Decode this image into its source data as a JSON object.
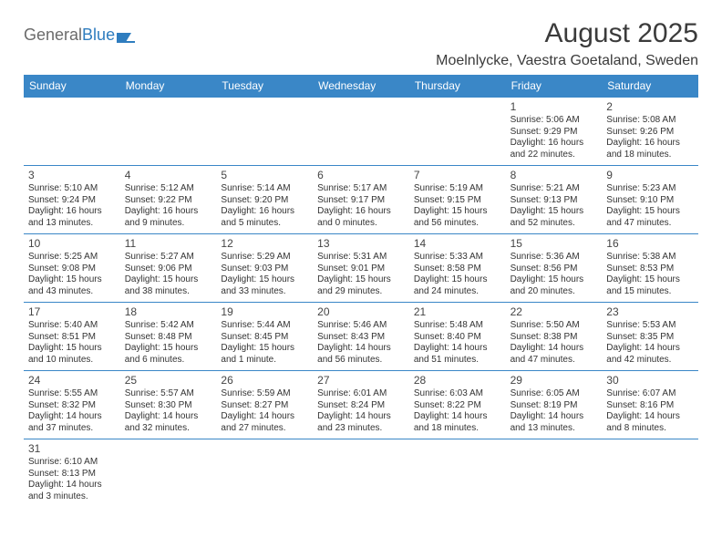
{
  "logo": {
    "text1": "General",
    "text2": "Blue"
  },
  "title": "August 2025",
  "location": "Moelnlycke, Vaestra Goetaland, Sweden",
  "colors": {
    "header_bg": "#3a87c7",
    "header_fg": "#ffffff",
    "rule": "#3a87c7",
    "logo_gray": "#6b6b6b",
    "logo_blue": "#2f7dbf",
    "text": "#333333"
  },
  "day_labels": [
    "Sunday",
    "Monday",
    "Tuesday",
    "Wednesday",
    "Thursday",
    "Friday",
    "Saturday"
  ],
  "weeks": [
    [
      null,
      null,
      null,
      null,
      null,
      {
        "n": "1",
        "sr": "Sunrise: 5:06 AM",
        "ss": "Sunset: 9:29 PM",
        "dl": "Daylight: 16 hours and 22 minutes."
      },
      {
        "n": "2",
        "sr": "Sunrise: 5:08 AM",
        "ss": "Sunset: 9:26 PM",
        "dl": "Daylight: 16 hours and 18 minutes."
      }
    ],
    [
      {
        "n": "3",
        "sr": "Sunrise: 5:10 AM",
        "ss": "Sunset: 9:24 PM",
        "dl": "Daylight: 16 hours and 13 minutes."
      },
      {
        "n": "4",
        "sr": "Sunrise: 5:12 AM",
        "ss": "Sunset: 9:22 PM",
        "dl": "Daylight: 16 hours and 9 minutes."
      },
      {
        "n": "5",
        "sr": "Sunrise: 5:14 AM",
        "ss": "Sunset: 9:20 PM",
        "dl": "Daylight: 16 hours and 5 minutes."
      },
      {
        "n": "6",
        "sr": "Sunrise: 5:17 AM",
        "ss": "Sunset: 9:17 PM",
        "dl": "Daylight: 16 hours and 0 minutes."
      },
      {
        "n": "7",
        "sr": "Sunrise: 5:19 AM",
        "ss": "Sunset: 9:15 PM",
        "dl": "Daylight: 15 hours and 56 minutes."
      },
      {
        "n": "8",
        "sr": "Sunrise: 5:21 AM",
        "ss": "Sunset: 9:13 PM",
        "dl": "Daylight: 15 hours and 52 minutes."
      },
      {
        "n": "9",
        "sr": "Sunrise: 5:23 AM",
        "ss": "Sunset: 9:10 PM",
        "dl": "Daylight: 15 hours and 47 minutes."
      }
    ],
    [
      {
        "n": "10",
        "sr": "Sunrise: 5:25 AM",
        "ss": "Sunset: 9:08 PM",
        "dl": "Daylight: 15 hours and 43 minutes."
      },
      {
        "n": "11",
        "sr": "Sunrise: 5:27 AM",
        "ss": "Sunset: 9:06 PM",
        "dl": "Daylight: 15 hours and 38 minutes."
      },
      {
        "n": "12",
        "sr": "Sunrise: 5:29 AM",
        "ss": "Sunset: 9:03 PM",
        "dl": "Daylight: 15 hours and 33 minutes."
      },
      {
        "n": "13",
        "sr": "Sunrise: 5:31 AM",
        "ss": "Sunset: 9:01 PM",
        "dl": "Daylight: 15 hours and 29 minutes."
      },
      {
        "n": "14",
        "sr": "Sunrise: 5:33 AM",
        "ss": "Sunset: 8:58 PM",
        "dl": "Daylight: 15 hours and 24 minutes."
      },
      {
        "n": "15",
        "sr": "Sunrise: 5:36 AM",
        "ss": "Sunset: 8:56 PM",
        "dl": "Daylight: 15 hours and 20 minutes."
      },
      {
        "n": "16",
        "sr": "Sunrise: 5:38 AM",
        "ss": "Sunset: 8:53 PM",
        "dl": "Daylight: 15 hours and 15 minutes."
      }
    ],
    [
      {
        "n": "17",
        "sr": "Sunrise: 5:40 AM",
        "ss": "Sunset: 8:51 PM",
        "dl": "Daylight: 15 hours and 10 minutes."
      },
      {
        "n": "18",
        "sr": "Sunrise: 5:42 AM",
        "ss": "Sunset: 8:48 PM",
        "dl": "Daylight: 15 hours and 6 minutes."
      },
      {
        "n": "19",
        "sr": "Sunrise: 5:44 AM",
        "ss": "Sunset: 8:45 PM",
        "dl": "Daylight: 15 hours and 1 minute."
      },
      {
        "n": "20",
        "sr": "Sunrise: 5:46 AM",
        "ss": "Sunset: 8:43 PM",
        "dl": "Daylight: 14 hours and 56 minutes."
      },
      {
        "n": "21",
        "sr": "Sunrise: 5:48 AM",
        "ss": "Sunset: 8:40 PM",
        "dl": "Daylight: 14 hours and 51 minutes."
      },
      {
        "n": "22",
        "sr": "Sunrise: 5:50 AM",
        "ss": "Sunset: 8:38 PM",
        "dl": "Daylight: 14 hours and 47 minutes."
      },
      {
        "n": "23",
        "sr": "Sunrise: 5:53 AM",
        "ss": "Sunset: 8:35 PM",
        "dl": "Daylight: 14 hours and 42 minutes."
      }
    ],
    [
      {
        "n": "24",
        "sr": "Sunrise: 5:55 AM",
        "ss": "Sunset: 8:32 PM",
        "dl": "Daylight: 14 hours and 37 minutes."
      },
      {
        "n": "25",
        "sr": "Sunrise: 5:57 AM",
        "ss": "Sunset: 8:30 PM",
        "dl": "Daylight: 14 hours and 32 minutes."
      },
      {
        "n": "26",
        "sr": "Sunrise: 5:59 AM",
        "ss": "Sunset: 8:27 PM",
        "dl": "Daylight: 14 hours and 27 minutes."
      },
      {
        "n": "27",
        "sr": "Sunrise: 6:01 AM",
        "ss": "Sunset: 8:24 PM",
        "dl": "Daylight: 14 hours and 23 minutes."
      },
      {
        "n": "28",
        "sr": "Sunrise: 6:03 AM",
        "ss": "Sunset: 8:22 PM",
        "dl": "Daylight: 14 hours and 18 minutes."
      },
      {
        "n": "29",
        "sr": "Sunrise: 6:05 AM",
        "ss": "Sunset: 8:19 PM",
        "dl": "Daylight: 14 hours and 13 minutes."
      },
      {
        "n": "30",
        "sr": "Sunrise: 6:07 AM",
        "ss": "Sunset: 8:16 PM",
        "dl": "Daylight: 14 hours and 8 minutes."
      }
    ],
    [
      {
        "n": "31",
        "sr": "Sunrise: 6:10 AM",
        "ss": "Sunset: 8:13 PM",
        "dl": "Daylight: 14 hours and 3 minutes."
      },
      null,
      null,
      null,
      null,
      null,
      null
    ]
  ]
}
